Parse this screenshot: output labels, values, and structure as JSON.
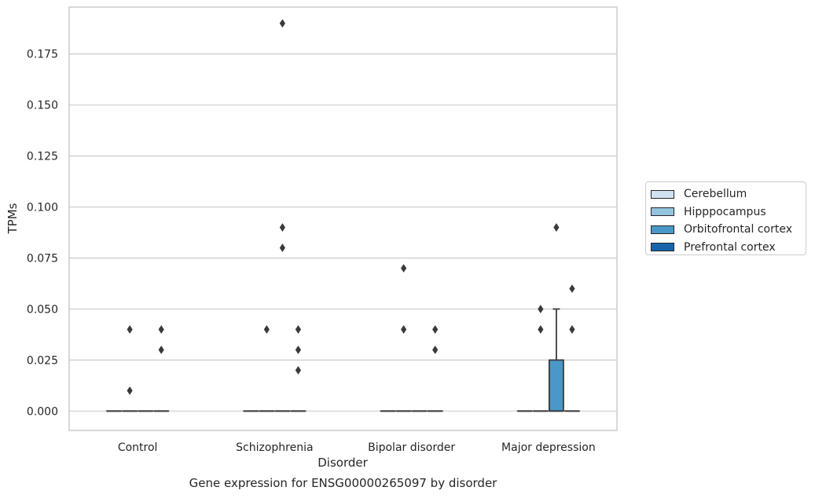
{
  "chart_data": {
    "type": "box",
    "title": "Gene expression for ENSG00000265097 by disorder",
    "xlabel": "Disorder",
    "ylabel": "TPMs",
    "categories": [
      "Control",
      "Schizophrenia",
      "Bipolar disorder",
      "Major depression"
    ],
    "ylim": [
      -0.0095,
      0.198
    ],
    "yticks": [
      "0.000",
      "0.025",
      "0.050",
      "0.075",
      "0.100",
      "0.125",
      "0.150",
      "0.175"
    ],
    "grid": true,
    "legend_position": "right",
    "series": [
      {
        "name": "Cerebellum",
        "color": "#d0e1f2",
        "boxes": [
          {
            "q1": 0,
            "median": 0,
            "q3": 0,
            "whisker_low": 0,
            "whisker_high": 0,
            "outliers": []
          },
          {
            "q1": 0,
            "median": 0,
            "q3": 0,
            "whisker_low": 0,
            "whisker_high": 0,
            "outliers": []
          },
          {
            "q1": 0,
            "median": 0,
            "q3": 0,
            "whisker_low": 0,
            "whisker_high": 0,
            "outliers": []
          },
          {
            "q1": 0,
            "median": 0,
            "q3": 0,
            "whisker_low": 0,
            "whisker_high": 0,
            "outliers": []
          }
        ]
      },
      {
        "name": "Hipppocampus",
        "color": "#94c4df",
        "boxes": [
          {
            "q1": 0,
            "median": 0,
            "q3": 0,
            "whisker_low": 0,
            "whisker_high": 0,
            "outliers": [
              0.01,
              0.04
            ]
          },
          {
            "q1": 0,
            "median": 0,
            "q3": 0,
            "whisker_low": 0,
            "whisker_high": 0,
            "outliers": [
              0.04
            ]
          },
          {
            "q1": 0,
            "median": 0,
            "q3": 0,
            "whisker_low": 0,
            "whisker_high": 0,
            "outliers": [
              0.04,
              0.07
            ]
          },
          {
            "q1": 0,
            "median": 0,
            "q3": 0,
            "whisker_low": 0,
            "whisker_high": 0,
            "outliers": [
              0.04,
              0.05
            ]
          }
        ]
      },
      {
        "name": "Orbitofrontal cortex",
        "color": "#4a98c9",
        "boxes": [
          {
            "q1": 0,
            "median": 0,
            "q3": 0,
            "whisker_low": 0,
            "whisker_high": 0,
            "outliers": []
          },
          {
            "q1": 0,
            "median": 0,
            "q3": 0,
            "whisker_low": 0,
            "whisker_high": 0,
            "outliers": [
              0.08,
              0.09,
              0.19
            ]
          },
          {
            "q1": 0,
            "median": 0,
            "q3": 0,
            "whisker_low": 0,
            "whisker_high": 0,
            "outliers": []
          },
          {
            "q1": 0,
            "median": 0,
            "q3": 0.025,
            "whisker_low": 0,
            "whisker_high": 0.05,
            "outliers": [
              0.09
            ]
          }
        ]
      },
      {
        "name": "Prefrontal cortex",
        "color": "#1764ab",
        "boxes": [
          {
            "q1": 0,
            "median": 0,
            "q3": 0,
            "whisker_low": 0,
            "whisker_high": 0,
            "outliers": [
              0.03,
              0.04
            ]
          },
          {
            "q1": 0,
            "median": 0,
            "q3": 0,
            "whisker_low": 0,
            "whisker_high": 0,
            "outliers": [
              0.02,
              0.03,
              0.04
            ]
          },
          {
            "q1": 0,
            "median": 0,
            "q3": 0,
            "whisker_low": 0,
            "whisker_high": 0,
            "outliers": [
              0.03,
              0.04
            ]
          },
          {
            "q1": 0,
            "median": 0,
            "q3": 0,
            "whisker_low": 0,
            "whisker_high": 0,
            "outliers": [
              0.04,
              0.06
            ]
          }
        ]
      }
    ]
  }
}
